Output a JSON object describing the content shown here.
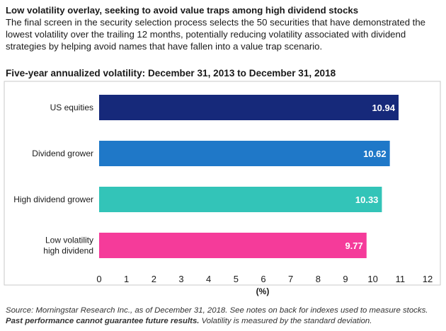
{
  "header": {
    "headline": "Low volatility overlay, seeking to avoid value traps among high dividend stocks",
    "intro": "The final screen in the security selection process selects the 50 securities that have demonstrated the lowest volatility over the trailing 12 months, potentially reducing volatility associated with dividend strategies by helping avoid names that have fallen into a value trap scenario."
  },
  "chart_data": {
    "type": "bar",
    "orientation": "horizontal",
    "title": "Five-year annualized volatility: December 31, 2013 to December 31, 2018",
    "categories": [
      [
        "US equities"
      ],
      [
        "Dividend grower"
      ],
      [
        "High dividend grower"
      ],
      [
        "Low volatility",
        "high dividend"
      ]
    ],
    "values": [
      10.94,
      10.62,
      10.33,
      9.77
    ],
    "value_labels": [
      "10.94",
      "10.62",
      "10.33",
      "9.77"
    ],
    "colors": [
      "#16297a",
      "#1f78c8",
      "#33c4b8",
      "#f53b9a"
    ],
    "xlabel": "(%)",
    "xlim": [
      0,
      12
    ],
    "xticks": [
      "0",
      "1",
      "2",
      "3",
      "4",
      "5",
      "6",
      "7",
      "8",
      "9",
      "10",
      "11",
      "12"
    ],
    "grid": false
  },
  "footnote": {
    "source": "Source: Morningstar Research Inc., as of December 31, 2018. See notes on back for indexes used to measure stocks.",
    "disclaimer": "Past performance cannot guarantee future results.",
    "note": "Volatility is measured by the standard deviation."
  }
}
